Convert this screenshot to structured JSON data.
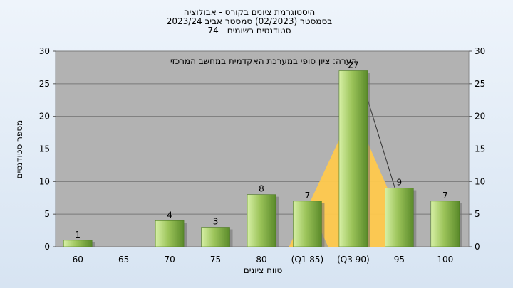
{
  "title_lines": [
    "היסטוגרמת ציונים בקורס - אבולוציה",
    "בסמסטר  (02/2023)  סמסטר אביב 2023/24",
    "סטודנטים רשומים - 74"
  ],
  "colors": {
    "plot_bg": "#b2b2b2",
    "bar_light": "#d7f0a6",
    "bar_mid": "#9cc45a",
    "bar_dark": "#5a8a2a",
    "area_fill": "#ffc94d",
    "area_shade": "#9f9f9f"
  },
  "chart_data": {
    "type": "bar",
    "title": "היסטוגרמת ציונים בקורס - אבולוציה",
    "xlabel": "טווח ציונים",
    "ylabel": "מספר סטודנטים",
    "ylim": [
      0,
      30
    ],
    "yticks": [
      "0",
      "5",
      "10",
      "15",
      "20",
      "25",
      "30"
    ],
    "grid": true,
    "secondary_y_axis": true,
    "annotation": "הערה: ציון סופי במערכת האקדמית במחשב המרכזי",
    "categories": [
      "60",
      "65",
      "70",
      "75",
      "80",
      "(Q1 85)",
      "(Q3 90)",
      "95",
      "100"
    ],
    "values": [
      1,
      null,
      4,
      3,
      8,
      7,
      27,
      9,
      7
    ],
    "value_labels": [
      "1",
      "",
      "4",
      "3",
      "8",
      "7",
      "27",
      "9",
      "7"
    ]
  }
}
